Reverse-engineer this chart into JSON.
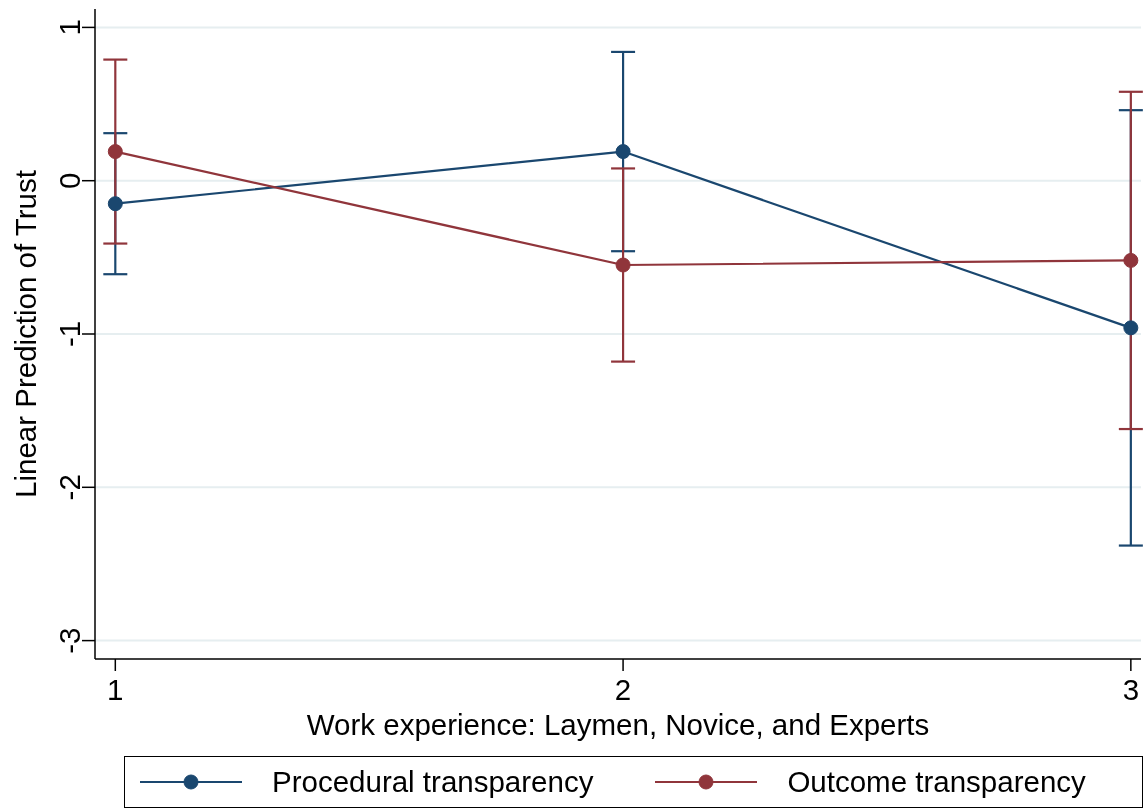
{
  "chart_data": {
    "type": "line",
    "xlabel": "Work experience: Laymen, Novice, and Experts",
    "ylabel": "Linear Prediction of Trust",
    "x": [
      1,
      2,
      3
    ],
    "series": [
      {
        "name": "Procedural transparency",
        "color": "#1a476f",
        "values": [
          -0.15,
          0.19,
          -0.96
        ],
        "errors": [
          0.46,
          0.65,
          1.42
        ]
      },
      {
        "name": "Outcome transparency",
        "color": "#90353b",
        "values": [
          0.19,
          -0.55,
          -0.52
        ],
        "errors": [
          0.6,
          0.63,
          1.1
        ]
      }
    ],
    "xlim": [
      0.96,
      3.02
    ],
    "ylim": [
      -3.12,
      1.12
    ],
    "xticks": [
      1,
      2,
      3
    ],
    "yticks": [
      -3,
      -2,
      -1,
      0,
      1
    ],
    "grid": "y",
    "legend": "bottom",
    "marker": "circle",
    "line_style": "solid"
  }
}
